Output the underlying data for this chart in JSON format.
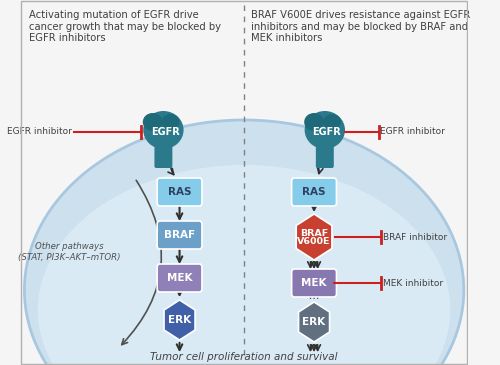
{
  "title_left": "Activating mutation of EGFR drive\ncancer growth that may be blocked by\nEGFR inhibitors",
  "title_right": "BRAF V600E drives resistance against EGFR\ninhibitors and may be blocked by BRAF and\nMEK inhibitors",
  "bottom_text": "Tumor cell proliferation and survival",
  "bg_outer": "#f0f4f8",
  "bg_cell": "#d0e4f0",
  "bg_cell_inner": "#e8f2f8",
  "cell_border": "#b0c8e0",
  "egfr_color": "#2a7a8c",
  "ras_color": "#a8ddf0",
  "braf_color": "#7ab0d8",
  "brafv600e_color": "#c84030",
  "mek_color_left": "#9080b8",
  "mek_color_right": "#8878b0",
  "erk_color_left": "#4060a8",
  "erk_color_right": "#607080",
  "inhibitor_line_color": "#cc2020",
  "arrow_color": "#303030",
  "text_color": "#404040",
  "other_pathways_color": "#505050",
  "divider_color": "#808080"
}
